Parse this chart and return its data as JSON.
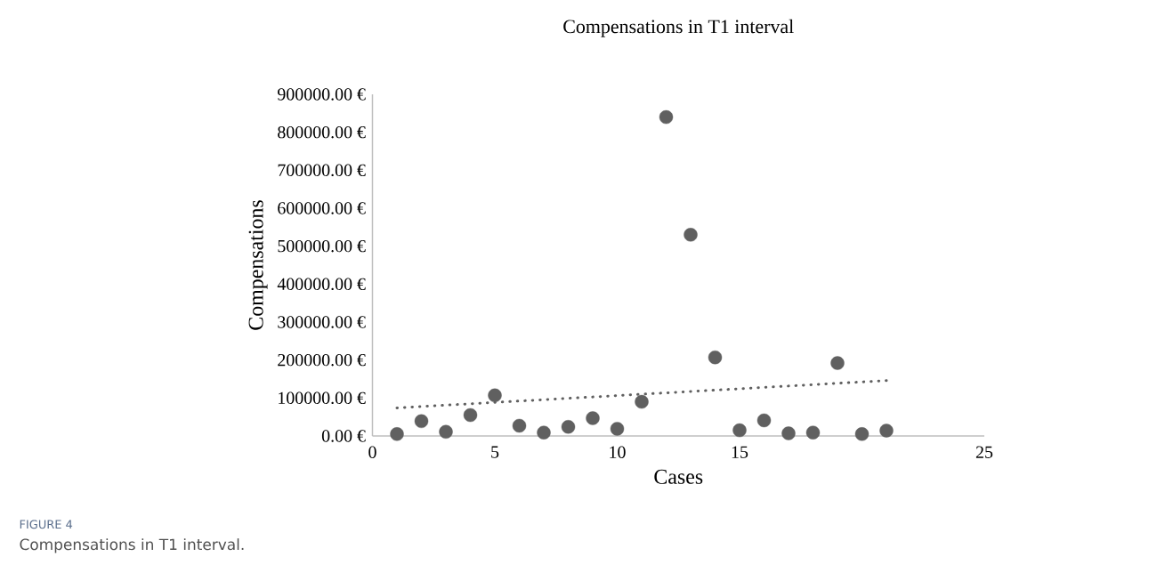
{
  "chart_data": {
    "type": "scatter",
    "title": "Compensations in T1 interval",
    "xlabel": "Cases",
    "ylabel": "Compensations",
    "annotations": [
      "FIGURE 4",
      "Compensations in T1 interval."
    ],
    "series": [
      {
        "color": "#606060",
        "marker": "circle",
        "x": [
          1,
          2,
          3,
          4,
          5,
          6,
          7,
          8,
          9,
          10,
          11,
          12,
          13,
          14,
          15,
          16,
          17,
          18,
          19,
          20,
          21
        ],
        "values": [
          5000,
          39000,
          11000,
          55000,
          107000,
          27000,
          9000,
          24000,
          47000,
          19000,
          90000,
          840000,
          530000,
          207000,
          15000,
          41000,
          7000,
          9000,
          192000,
          5000,
          14000
        ]
      },
      {
        "type": "line",
        "color": "#606060",
        "line_style": "dotted",
        "marker": "none",
        "x": [
          1,
          21
        ],
        "values": [
          74000,
          146000
        ]
      }
    ],
    "xlim": [
      0,
      25
    ],
    "ylim": [
      0,
      900000
    ],
    "xticks": [
      0,
      5,
      10,
      15,
      25
    ],
    "yticks": [
      {
        "value": 0,
        "label": "0.00 €"
      },
      {
        "value": 100000,
        "label": "100000.00 €"
      },
      {
        "value": 200000,
        "label": "200000.00 €"
      },
      {
        "value": 300000,
        "label": "300000.00 €"
      },
      {
        "value": 400000,
        "label": "400000.00 €"
      },
      {
        "value": 500000,
        "label": "500000.00 €"
      },
      {
        "value": 600000,
        "label": "600000.00 €"
      },
      {
        "value": 700000,
        "label": "700000.00 €"
      },
      {
        "value": 800000,
        "label": "800000.00 €"
      },
      {
        "value": 900000,
        "label": "900000.00 €"
      }
    ],
    "grid": false
  }
}
